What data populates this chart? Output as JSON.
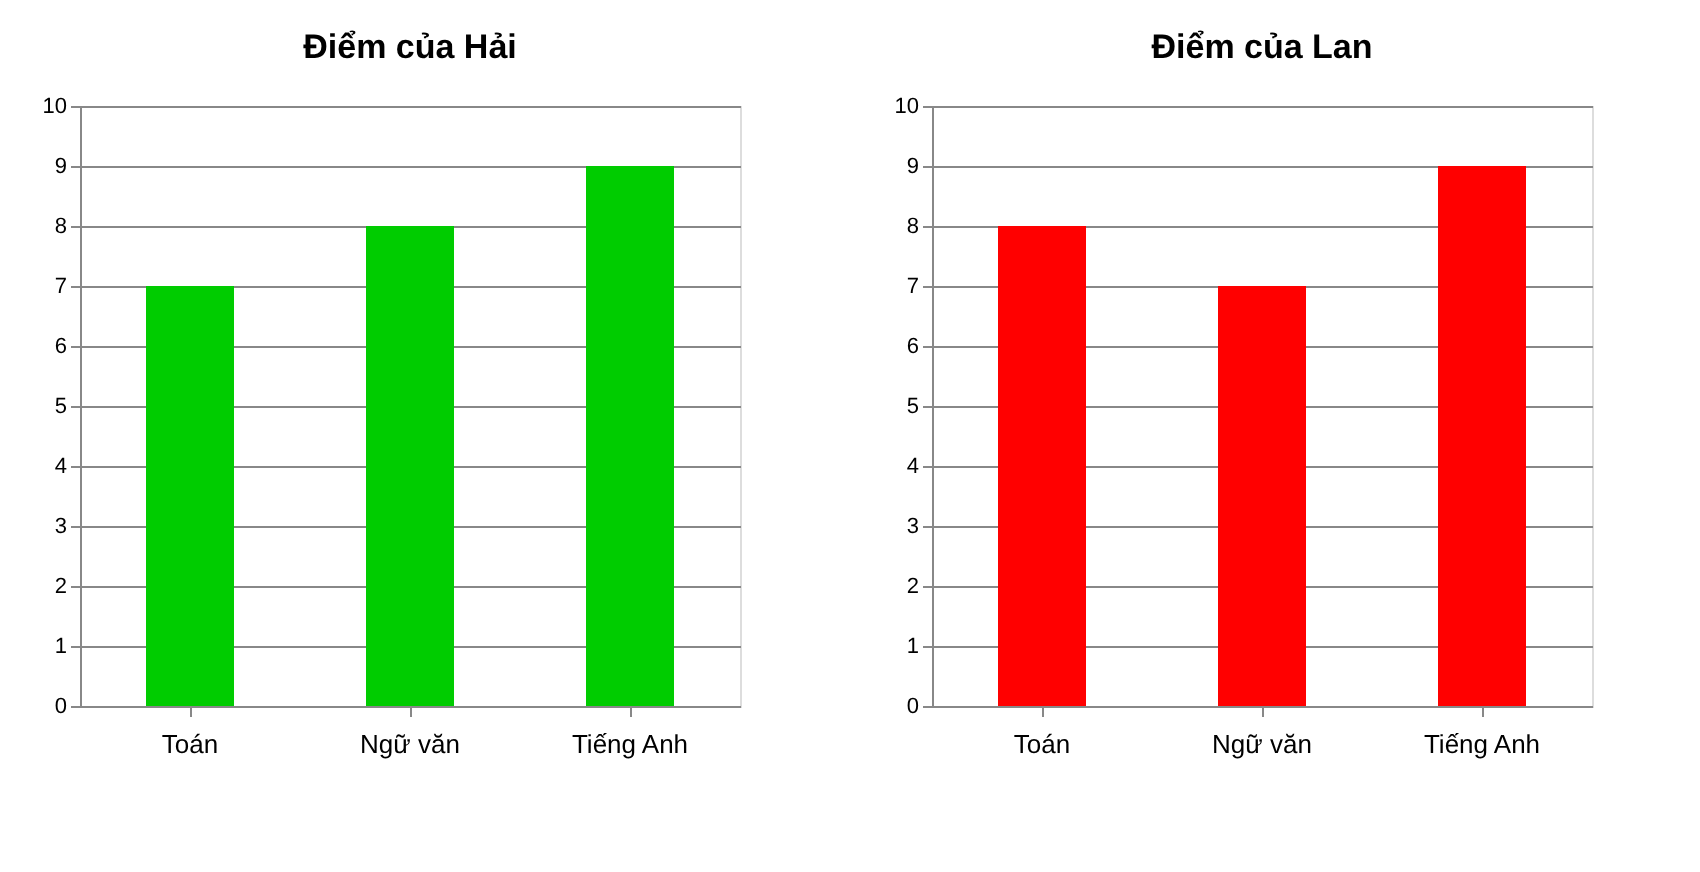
{
  "chart_data": [
    {
      "type": "bar",
      "title": "Điểm của Hải",
      "categories": [
        "Toán",
        "Ngữ văn",
        "Tiếng Anh"
      ],
      "values": [
        7,
        8,
        9
      ],
      "color": "#00cc00",
      "ylim": [
        0,
        10
      ],
      "yticks": [
        0,
        1,
        2,
        3,
        4,
        5,
        6,
        7,
        8,
        9,
        10
      ],
      "grid": "y"
    },
    {
      "type": "bar",
      "title": "Điểm của Lan",
      "categories": [
        "Toán",
        "Ngữ văn",
        "Tiếng Anh"
      ],
      "values": [
        8,
        7,
        9
      ],
      "color": "#ff0000",
      "ylim": [
        0,
        10
      ],
      "yticks": [
        0,
        1,
        2,
        3,
        4,
        5,
        6,
        7,
        8,
        9,
        10
      ],
      "grid": "y"
    }
  ]
}
